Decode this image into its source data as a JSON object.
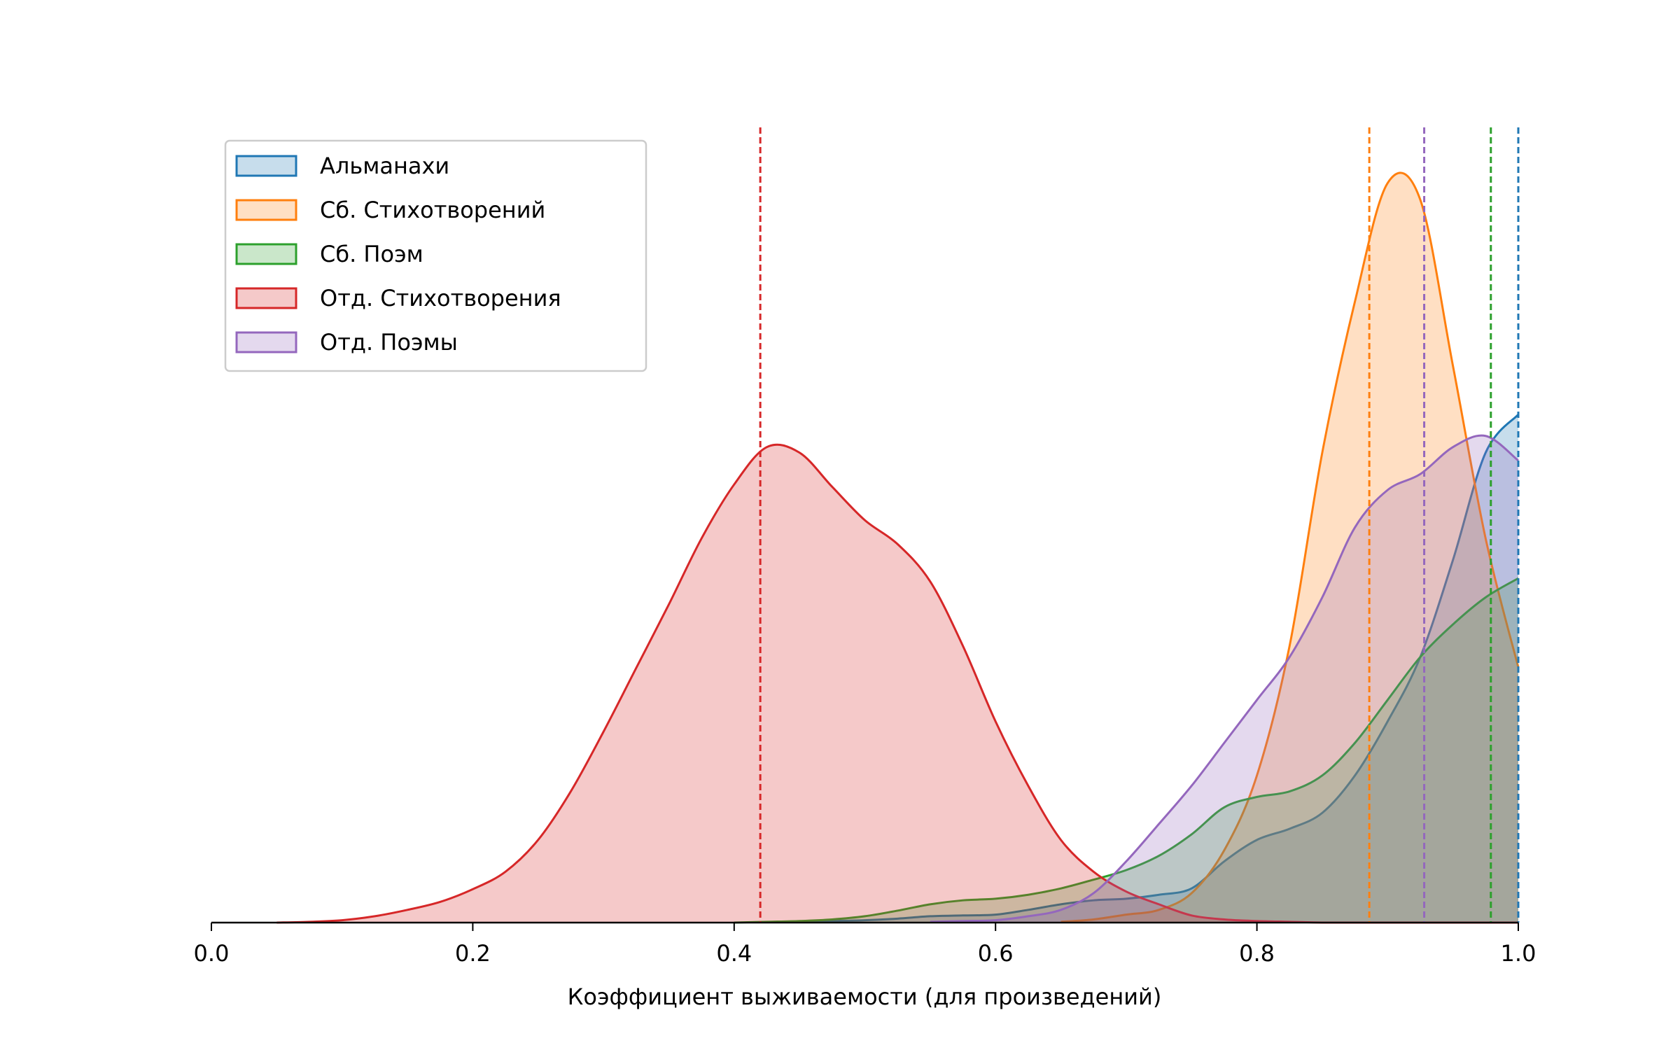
{
  "chart_data": {
    "type": "kde",
    "xlabel": "Коэффициент выживаемости (для произведений)",
    "xlim": [
      0,
      1
    ],
    "ylim": [
      0,
      1
    ],
    "xticks": [
      {
        "value": 0,
        "label": "0.0"
      },
      0.2,
      0.4,
      0.6,
      0.8,
      {
        "value": 1,
        "label": "1.0"
      }
    ],
    "legend": "upper left",
    "x": [
      0.05,
      0.075,
      0.1,
      0.125,
      0.15,
      0.175,
      0.2,
      0.225,
      0.25,
      0.275,
      0.3,
      0.325,
      0.35,
      0.375,
      0.4,
      0.425,
      0.45,
      0.475,
      0.5,
      0.525,
      0.55,
      0.575,
      0.6,
      0.625,
      0.65,
      0.675,
      0.7,
      0.725,
      0.75,
      0.775,
      0.8,
      0.825,
      0.85,
      0.875,
      0.9,
      0.925,
      0.95,
      0.975,
      1.0
    ],
    "series": [
      {
        "name": "Альманахи",
        "color": "#1f77b4",
        "mean": 1.0,
        "values": [
          null,
          null,
          null,
          null,
          null,
          null,
          null,
          null,
          null,
          null,
          null,
          null,
          null,
          null,
          null,
          null,
          0.001,
          0.002,
          0.003,
          0.005,
          0.008,
          0.009,
          0.01,
          0.016,
          0.023,
          0.028,
          0.03,
          0.035,
          0.043,
          0.077,
          0.104,
          0.118,
          0.138,
          0.185,
          0.253,
          0.334,
          0.456,
          0.591,
          0.639
        ]
      },
      {
        "name": "Сб. Стихотворений",
        "color": "#ff7f0e",
        "mean": 0.886,
        "values": [
          null,
          null,
          null,
          null,
          null,
          null,
          null,
          null,
          null,
          null,
          null,
          null,
          null,
          null,
          null,
          null,
          null,
          null,
          null,
          null,
          null,
          null,
          null,
          null,
          0.001,
          0.004,
          0.01,
          0.016,
          0.037,
          0.091,
          0.185,
          0.348,
          0.591,
          0.781,
          0.93,
          0.909,
          0.7,
          0.483,
          0.321
        ]
      },
      {
        "name": "Сб. Поэм",
        "color": "#2ca02c",
        "mean": 0.979,
        "values": [
          null,
          null,
          null,
          null,
          null,
          null,
          null,
          null,
          null,
          null,
          null,
          null,
          null,
          null,
          0,
          0.001,
          0.002,
          0.004,
          0.008,
          0.015,
          0.023,
          0.028,
          0.03,
          0.035,
          0.043,
          0.054,
          0.066,
          0.084,
          0.111,
          0.145,
          0.158,
          0.165,
          0.185,
          0.226,
          0.28,
          0.334,
          0.375,
          0.409,
          0.433
        ]
      },
      {
        "name": "Отд. Стихотворения",
        "color": "#d62728",
        "mean": 0.42,
        "values": [
          0,
          0.001,
          0.003,
          0.008,
          0.016,
          0.026,
          0.042,
          0.064,
          0.104,
          0.165,
          0.24,
          0.32,
          0.4,
          0.483,
          0.551,
          0.598,
          0.591,
          0.548,
          0.506,
          0.476,
          0.429,
          0.348,
          0.253,
          0.172,
          0.104,
          0.064,
          0.039,
          0.023,
          0.009,
          0.004,
          0.002,
          0.001,
          0,
          0,
          0,
          0,
          0,
          0,
          0
        ]
      },
      {
        "name": "Отд. Поэмы",
        "color": "#9467bd",
        "mean": 0.928,
        "values": [
          null,
          null,
          null,
          null,
          null,
          null,
          null,
          null,
          null,
          null,
          null,
          null,
          null,
          null,
          null,
          null,
          null,
          null,
          null,
          null,
          0.001,
          0.002,
          0.003,
          0.008,
          0.016,
          0.037,
          0.077,
          0.124,
          0.172,
          0.226,
          0.28,
          0.334,
          0.409,
          0.497,
          0.544,
          0.564,
          0.598,
          0.612,
          0.581
        ]
      }
    ]
  }
}
